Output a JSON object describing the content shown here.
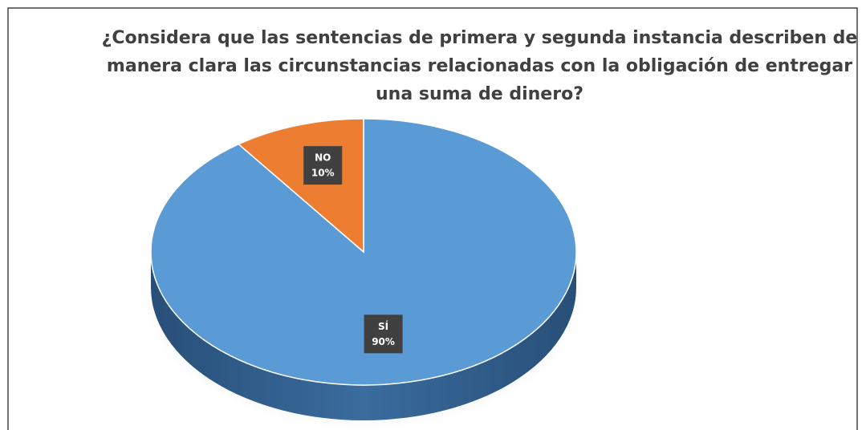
{
  "chart_data": {
    "type": "pie",
    "title": "¿Considera que las sentencias de primera y segunda instancia describen de manera clara las circunstancias relacionadas con la obligación de entregar una suma de dinero?",
    "categories": [
      "SÍ",
      "NO"
    ],
    "values": [
      90,
      10
    ],
    "value_labels": [
      "90%",
      "10%"
    ],
    "colors": [
      "#5b9bd5",
      "#ed7d31"
    ]
  }
}
